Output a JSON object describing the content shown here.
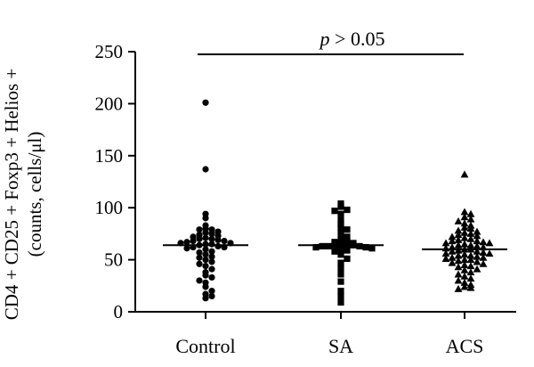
{
  "chart_data": {
    "type": "scatter",
    "title": "",
    "xlabel": "",
    "ylabel_line1": "CD4 + CD25 + Foxp3 + Helios +",
    "ylabel_line2": "(counts, cells/μl)",
    "ylim": [
      0,
      250
    ],
    "yticks": [
      0,
      50,
      100,
      150,
      200,
      250
    ],
    "categories": [
      "Control",
      "SA",
      "ACS"
    ],
    "annotation": {
      "italic": "p",
      "rest": " > 0.05"
    },
    "series": [
      {
        "category": "Control",
        "marker": "circle",
        "mean": 64,
        "values": [
          201,
          137,
          94,
          90,
          83,
          80,
          79,
          79,
          77,
          76,
          75,
          74,
          73,
          72,
          71,
          70,
          70,
          69,
          68,
          68,
          67,
          66,
          66,
          65,
          65,
          64,
          63,
          62,
          62,
          61,
          60,
          58,
          57,
          55,
          53,
          52,
          50,
          48,
          46,
          44,
          41,
          38,
          35,
          33,
          30,
          28,
          24,
          20,
          17,
          15,
          13
        ]
      },
      {
        "category": "SA",
        "marker": "square",
        "mean": 64,
        "values": [
          104,
          101,
          98,
          97,
          94,
          88,
          84,
          81,
          79,
          76,
          72,
          70,
          68,
          67,
          66,
          65,
          65,
          64,
          64,
          63,
          63,
          63,
          62,
          62,
          61,
          60,
          59,
          58,
          55,
          51,
          47,
          42,
          36,
          29,
          20,
          15,
          9
        ]
      },
      {
        "category": "ACS",
        "marker": "triangle",
        "mean": 60,
        "values": [
          132,
          96,
          94,
          91,
          89,
          87,
          85,
          83,
          81,
          80,
          78,
          77,
          76,
          75,
          74,
          73,
          72,
          71,
          70,
          69,
          68,
          68,
          67,
          66,
          66,
          65,
          64,
          64,
          63,
          62,
          62,
          61,
          60,
          60,
          59,
          58,
          58,
          57,
          56,
          56,
          55,
          54,
          54,
          53,
          52,
          52,
          51,
          50,
          50,
          49,
          48,
          47,
          46,
          45,
          44,
          43,
          41,
          40,
          38,
          36,
          34,
          32,
          30,
          28,
          26,
          24,
          23,
          22
        ]
      }
    ]
  }
}
